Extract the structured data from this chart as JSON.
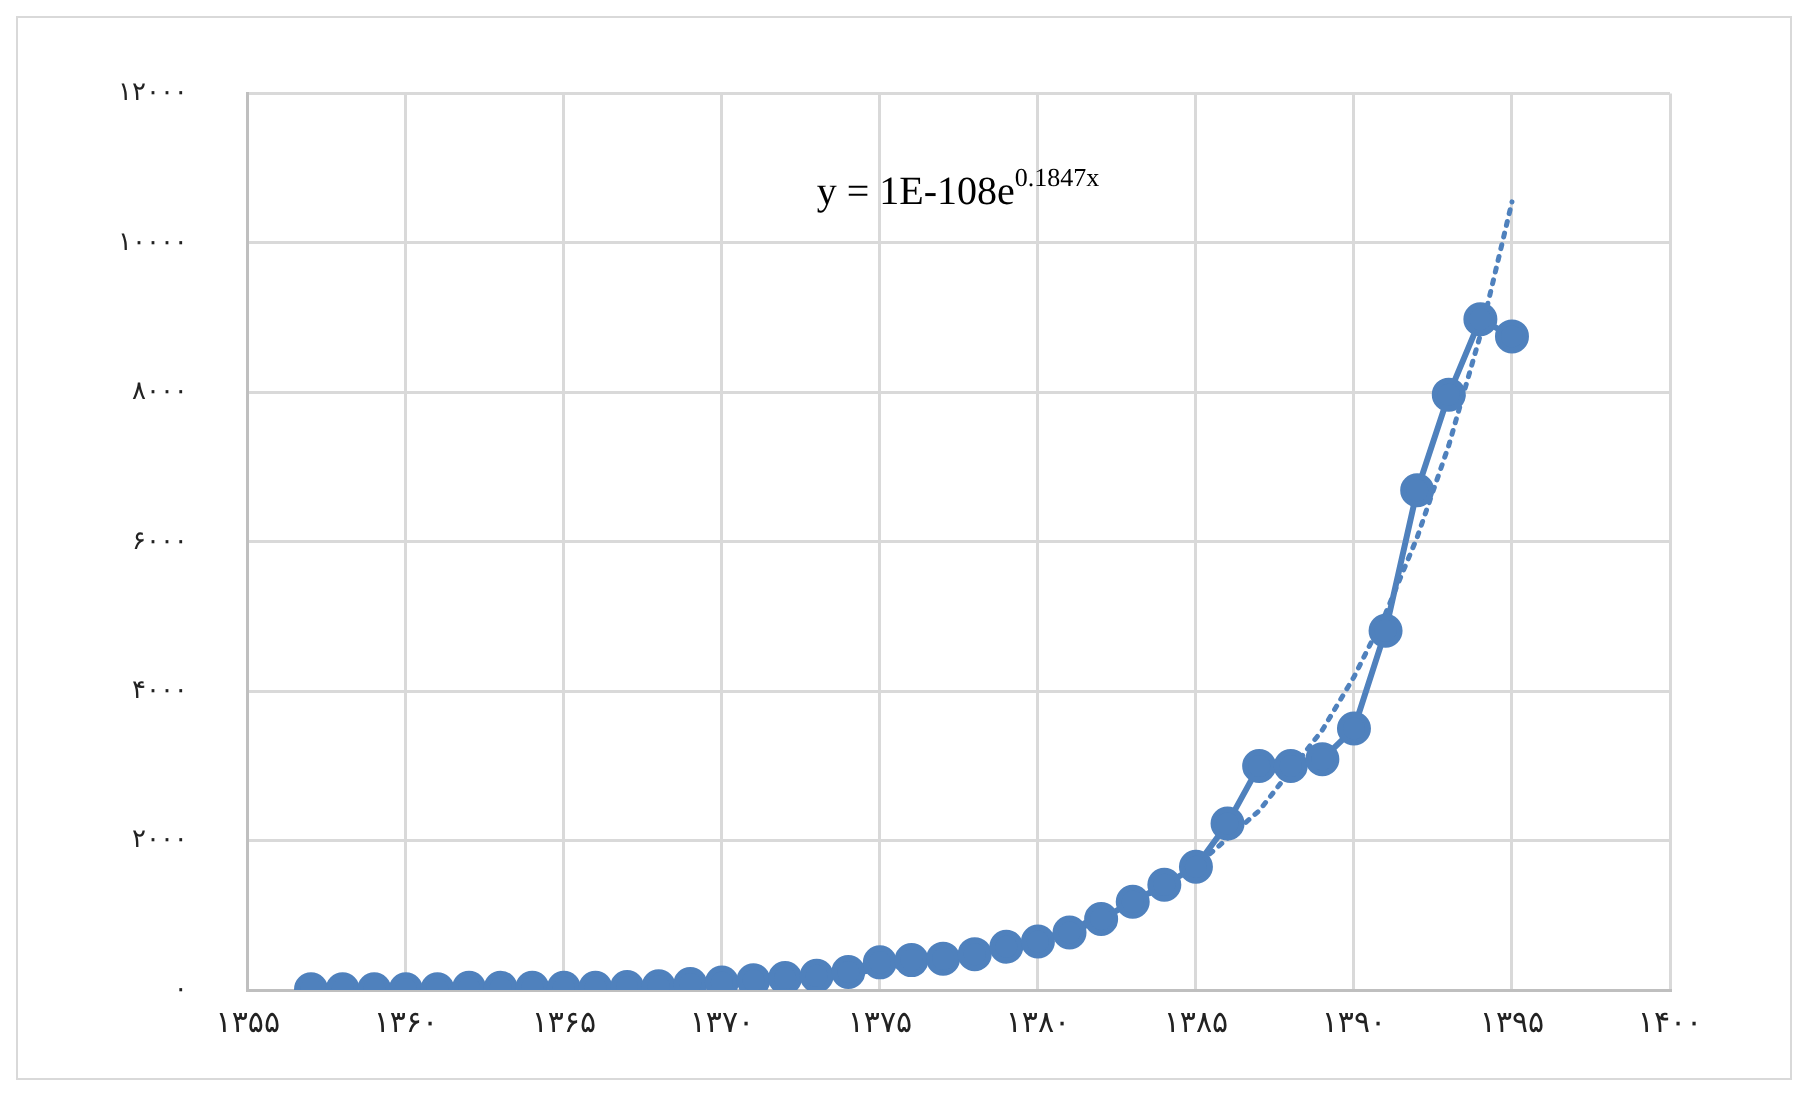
{
  "chart_data": {
    "type": "line",
    "annotations": [
      "y = 1E-108e$^{0.1847x}$"
    ],
    "xlim": [
      1355,
      1400
    ],
    "xticks": [
      {
        "value": 1355,
        "label": "۱۳۵۵"
      },
      {
        "value": 1360,
        "label": "۱۳۶۰"
      },
      {
        "value": 1365,
        "label": "۱۳۶۵"
      },
      {
        "value": 1370,
        "label": "۱۳۷۰"
      },
      {
        "value": 1375,
        "label": "۱۳۷۵"
      },
      {
        "value": 1380,
        "label": "۱۳۸۰"
      },
      {
        "value": 1385,
        "label": "۱۳۸۵"
      },
      {
        "value": 1390,
        "label": "۱۳۹۰"
      },
      {
        "value": 1395,
        "label": "۱۳۹۵"
      },
      {
        "value": 1400,
        "label": "۱۴۰۰"
      }
    ],
    "ylim": [
      0,
      12000
    ],
    "yticks": [
      {
        "value": 0,
        "label": "۰"
      },
      {
        "value": 2000,
        "label": "۲۰۰۰"
      },
      {
        "value": 4000,
        "label": "۴۰۰۰"
      },
      {
        "value": 6000,
        "label": "۶۰۰۰"
      },
      {
        "value": 8000,
        "label": "۸۰۰۰"
      },
      {
        "value": 10000,
        "label": "۱۰۰۰۰"
      },
      {
        "value": 12000,
        "label": "۱۲۰۰۰"
      }
    ],
    "grid": true,
    "legend": false,
    "series": [
      {
        "color": "#4f81bd",
        "marker": "circle",
        "line_style": "solid",
        "x": [
          1357,
          1358,
          1359,
          1360,
          1361,
          1362,
          1363,
          1364,
          1365,
          1366,
          1367,
          1368,
          1369,
          1370,
          1371,
          1372,
          1373,
          1374,
          1375,
          1376,
          1377,
          1378,
          1379,
          1380,
          1381,
          1382,
          1383,
          1384,
          1385,
          1386,
          1387,
          1388,
          1389,
          1390,
          1391,
          1392,
          1393,
          1394,
          1395
        ],
        "values": [
          10,
          10,
          10,
          10,
          10,
          30,
          30,
          30,
          30,
          30,
          40,
          50,
          80,
          100,
          130,
          160,
          190,
          240,
          370,
          400,
          420,
          480,
          580,
          650,
          770,
          950,
          1180,
          1410,
          1650,
          2230,
          3000,
          3000,
          3090,
          3500,
          4810,
          6690,
          7970,
          8980,
          8750
        ]
      },
      {
        "color": "#4f81bd",
        "marker": "none",
        "line_style": "dotted",
        "x": [
          1357,
          1360,
          1365,
          1370,
          1375,
          1380,
          1383,
          1385,
          1387,
          1389,
          1390,
          1391,
          1392,
          1393,
          1394,
          1395
        ],
        "values": [
          10,
          20,
          40,
          100,
          260,
          660,
          1150,
          1660,
          2400,
          3480,
          4190,
          5040,
          6060,
          7290,
          8770,
          10550
        ]
      }
    ]
  }
}
